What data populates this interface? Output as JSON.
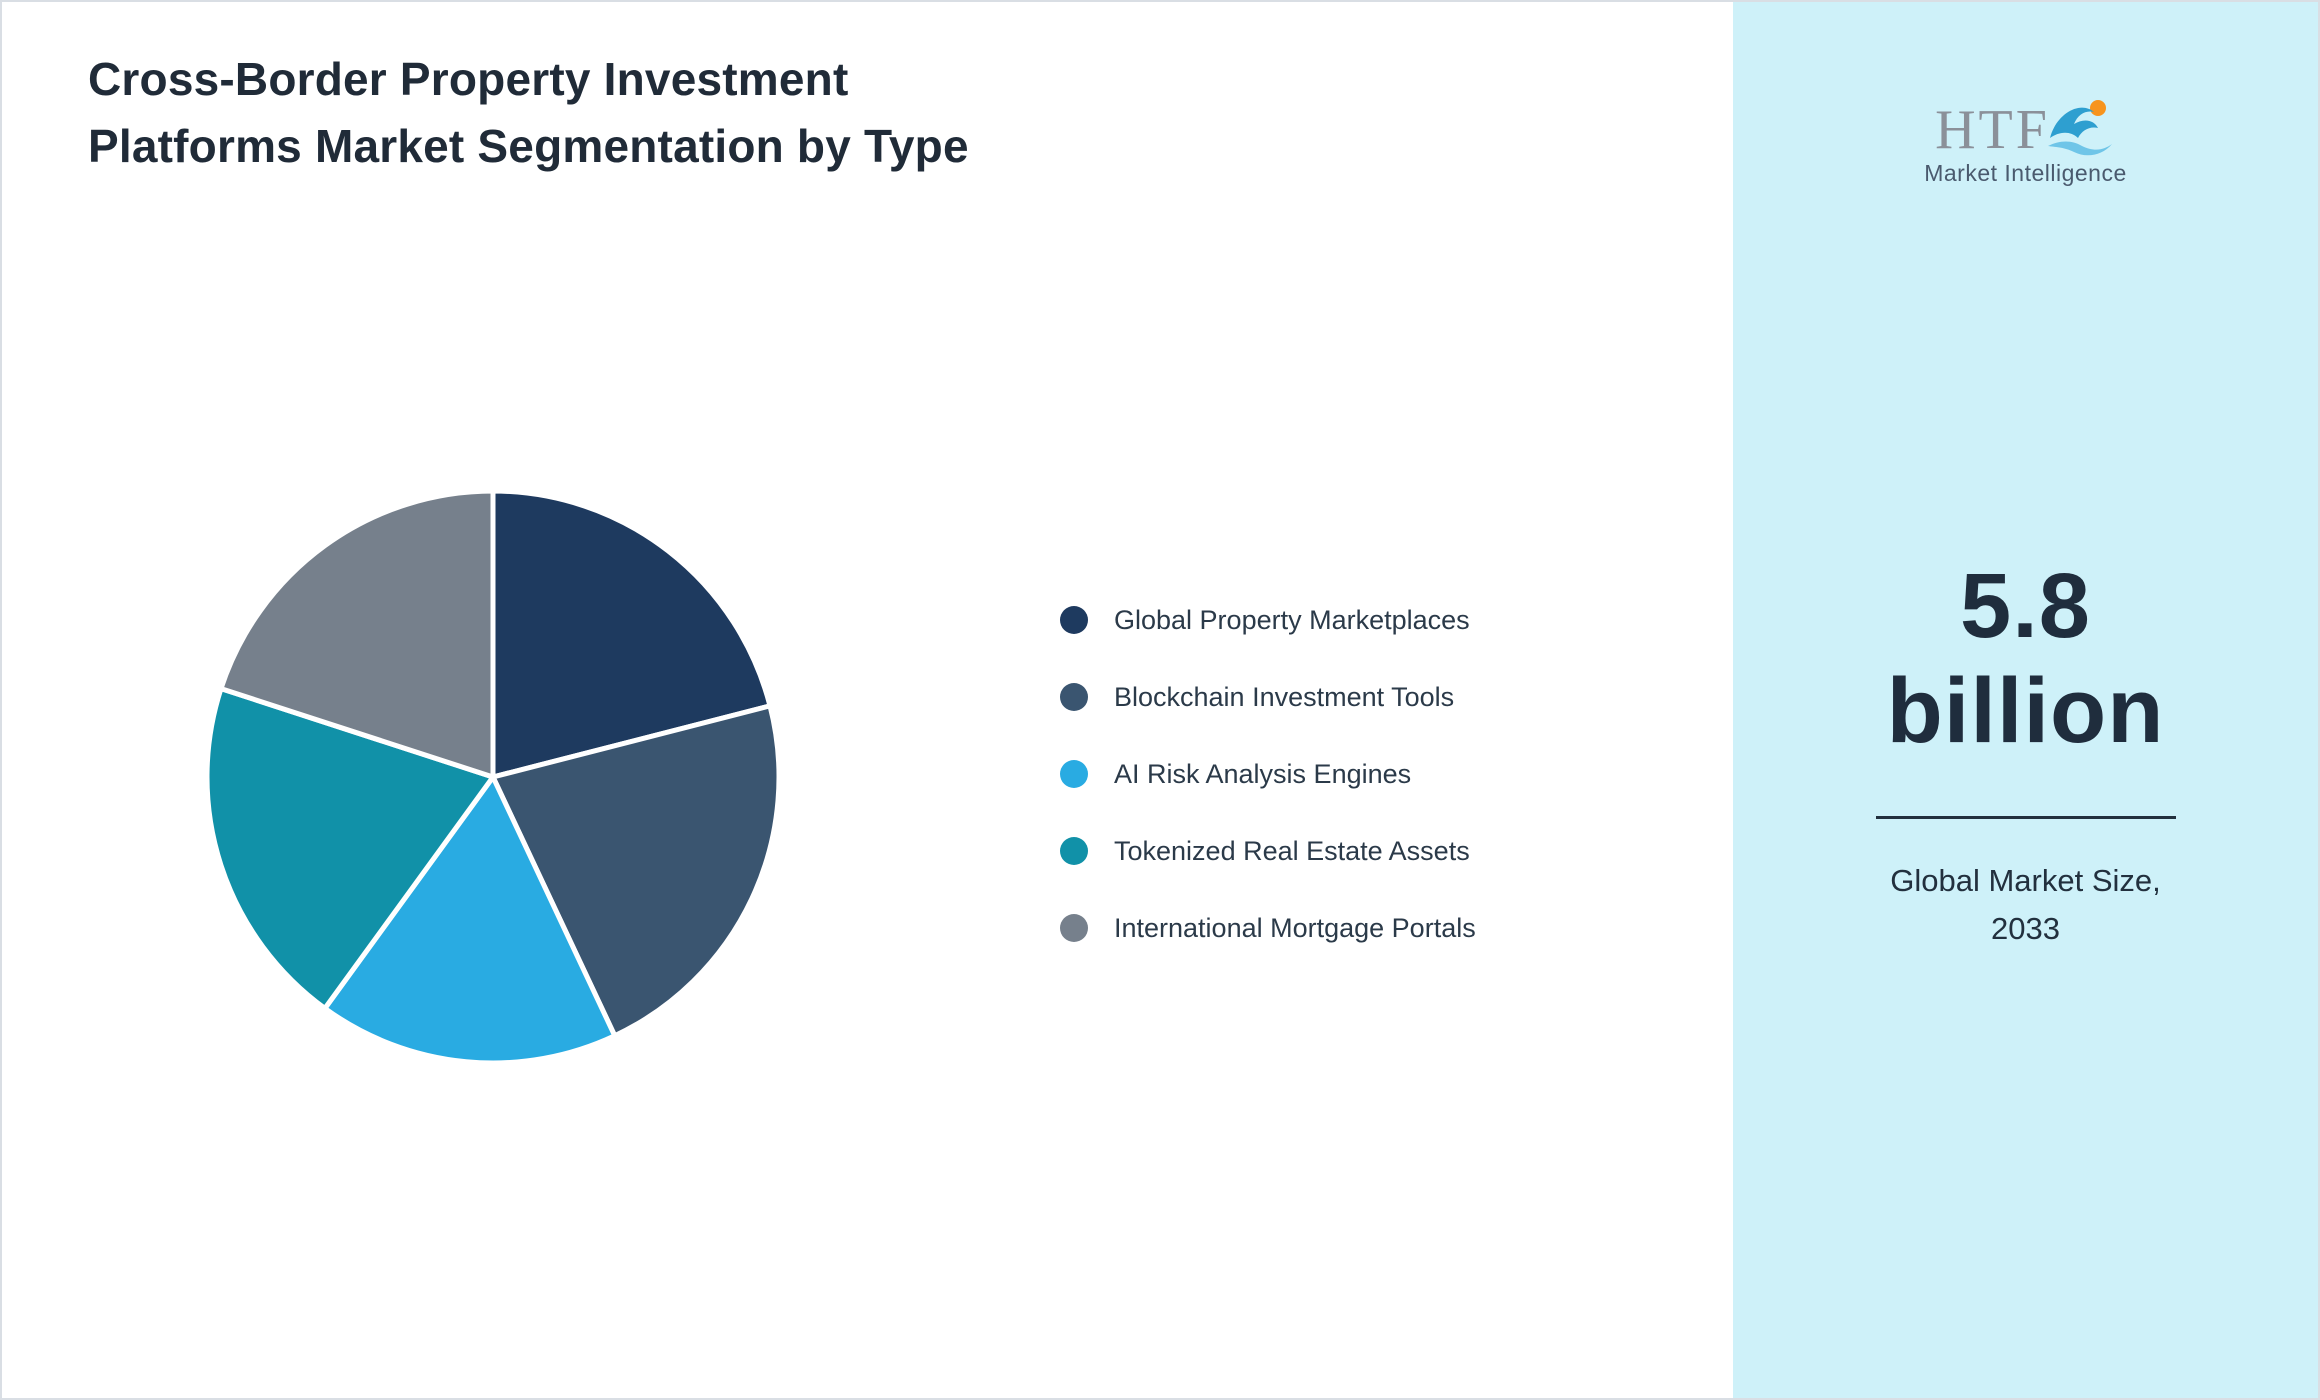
{
  "page": {
    "title": "Cross-Border Property Investment Platforms Market Segmentation by Type"
  },
  "sidebar": {
    "logo": {
      "brand": "HTF",
      "subtitle": "Market Intelligence"
    },
    "market_size": {
      "value": "5.8",
      "unit": "billion",
      "label_line1": "Global Market Size,",
      "label_line2": "2033"
    }
  },
  "chart_data": {
    "type": "pie",
    "title": "Cross-Border Property Investment Platforms Market Segmentation by Type",
    "legend_position": "right",
    "start_angle_deg": 0,
    "direction": "clockwise",
    "slice_border_color": "#ffffff",
    "segments": [
      {
        "label": "Global Property Marketplaces",
        "value": 21,
        "color": "#1E3A5F"
      },
      {
        "label": "Blockchain Investment Tools",
        "value": 22,
        "color": "#3A5570"
      },
      {
        "label": "AI Risk Analysis Engines",
        "value": 17,
        "color": "#29ABE2"
      },
      {
        "label": "Tokenized Real Estate Assets",
        "value": 20,
        "color": "#1191A8"
      },
      {
        "label": "International Mortgage Portals",
        "value": 20,
        "color": "#76808C"
      }
    ]
  }
}
